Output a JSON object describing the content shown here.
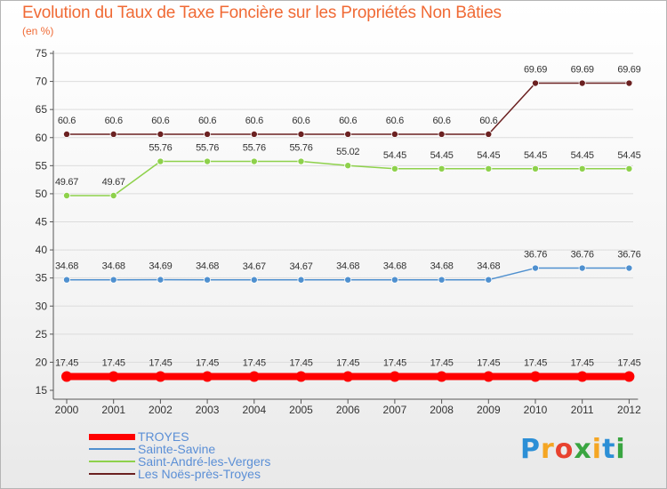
{
  "title": "Evolution du Taux de Taxe Foncière sur les Propriétés Non Bâties",
  "subtitle": "(en %)",
  "brand": {
    "letters": [
      "P",
      "r",
      "o",
      "x",
      "i",
      "t",
      "i"
    ],
    "colors": [
      "#2c8fd6",
      "#f5a623",
      "#e8422f",
      "#3aa541",
      "#f5a623",
      "#2c8fd6",
      "#3aa541"
    ]
  },
  "chart_data": {
    "type": "line",
    "title": "Evolution du Taux de Taxe Foncière sur les Propriétés Non Bâties",
    "ylabel": "(en %)",
    "xlabel": "",
    "ylim": [
      15,
      75
    ],
    "yticks": [
      15,
      20,
      25,
      30,
      35,
      40,
      45,
      50,
      55,
      60,
      65,
      70,
      75
    ],
    "x": [
      "2000",
      "2001",
      "2002",
      "2003",
      "2004",
      "2005",
      "2006",
      "2007",
      "2008",
      "2009",
      "2010",
      "2011",
      "2012"
    ],
    "series": [
      {
        "name": "TROYES",
        "color": "#ff0000",
        "values": [
          17.45,
          17.45,
          17.45,
          17.45,
          17.45,
          17.45,
          17.45,
          17.45,
          17.45,
          17.45,
          17.45,
          17.45,
          17.45
        ],
        "labels": [
          "17.45",
          "17.45",
          "17.45",
          "17.45",
          "17.45",
          "17.45",
          "17.45",
          "17.45",
          "17.45",
          "17.45",
          "17.45",
          "17.45",
          "17.45"
        ]
      },
      {
        "name": "Sainte-Savine",
        "color": "#4f90cf",
        "values": [
          34.68,
          34.68,
          34.69,
          34.68,
          34.67,
          34.67,
          34.68,
          34.68,
          34.68,
          34.68,
          36.76,
          36.76,
          36.76
        ],
        "labels": [
          "34.68",
          "34.68",
          "34.69",
          "34.68",
          "34.67",
          "34.67",
          "34.68",
          "34.68",
          "34.68",
          "34.68",
          "36.76",
          "36.76",
          "36.76"
        ]
      },
      {
        "name": "Saint-André-les-Vergers",
        "color": "#8ed14b",
        "values": [
          49.67,
          49.67,
          55.76,
          55.76,
          55.76,
          55.76,
          55.02,
          54.45,
          54.45,
          54.45,
          54.45,
          54.45,
          54.45
        ],
        "labels": [
          "49.67",
          "49.67",
          "55.76",
          "55.76",
          "55.76",
          "55.76",
          "55.02",
          "54.45",
          "54.45",
          "54.45",
          "54.45",
          "54.45",
          "54.45"
        ]
      },
      {
        "name": "Les Noës-près-Troyes",
        "color": "#6b2121",
        "values": [
          60.6,
          60.6,
          60.6,
          60.6,
          60.6,
          60.6,
          60.6,
          60.6,
          60.6,
          60.6,
          69.69,
          69.69,
          69.69
        ],
        "labels": [
          "60.6",
          "60.6",
          "60.6",
          "60.6",
          "60.6",
          "60.6",
          "60.6",
          "60.6",
          "60.6",
          "60.6",
          "69.69",
          "69.69",
          "69.69"
        ]
      }
    ],
    "legend_position": "bottom-left"
  }
}
